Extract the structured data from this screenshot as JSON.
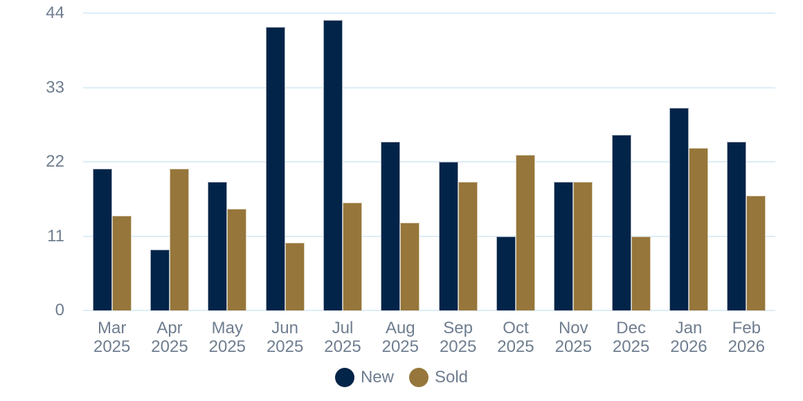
{
  "chart_data": {
    "type": "bar",
    "title": "",
    "categories": [
      {
        "month": "Mar",
        "year": "2025"
      },
      {
        "month": "Apr",
        "year": "2025"
      },
      {
        "month": "May",
        "year": "2025"
      },
      {
        "month": "Jun",
        "year": "2025"
      },
      {
        "month": "Jul",
        "year": "2025"
      },
      {
        "month": "Aug",
        "year": "2025"
      },
      {
        "month": "Sep",
        "year": "2025"
      },
      {
        "month": "Oct",
        "year": "2025"
      },
      {
        "month": "Nov",
        "year": "2025"
      },
      {
        "month": "Dec",
        "year": "2025"
      },
      {
        "month": "Jan",
        "year": "2026"
      },
      {
        "month": "Feb",
        "year": "2026"
      }
    ],
    "series": [
      {
        "name": "New",
        "color": "#022448",
        "values": [
          21,
          9,
          19,
          42,
          43,
          25,
          22,
          11,
          19,
          26,
          30,
          25
        ]
      },
      {
        "name": "Sold",
        "color": "#96763a",
        "values": [
          14,
          21,
          15,
          10,
          16,
          13,
          19,
          23,
          19,
          11,
          24,
          17
        ]
      }
    ],
    "y_ticks": [
      0,
      11,
      22,
      33,
      44
    ],
    "ylim": [
      0,
      44
    ],
    "grid": true,
    "legend_position": "bottom"
  },
  "style": {
    "gridline_color": "#ddedf7",
    "axis_text_color": "#6e7d8f",
    "background_color": "#ffffff"
  }
}
